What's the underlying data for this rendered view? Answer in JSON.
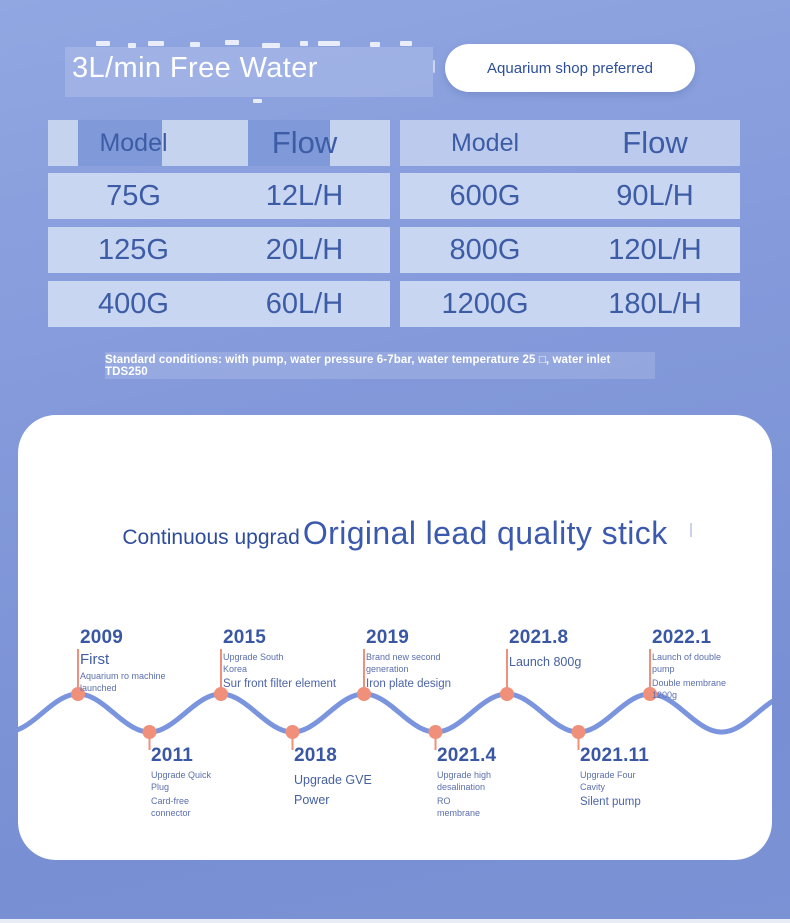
{
  "header": {
    "title": "3L/min Free Water",
    "badge": "Aquarium shop preferred"
  },
  "spec_tables": {
    "left": {
      "col_model": "Model",
      "col_flow": "Flow",
      "rows": [
        {
          "model": "75G",
          "flow": "12L/H"
        },
        {
          "model": "125G",
          "flow": "20L/H"
        },
        {
          "model": "400G",
          "flow": "60L/H"
        }
      ]
    },
    "right": {
      "col_model": "Model",
      "col_flow": "Flow",
      "rows": [
        {
          "model": "600G",
          "flow": "90L/H"
        },
        {
          "model": "800G",
          "flow": "120L/H"
        },
        {
          "model": "1200G",
          "flow": "180L/H"
        }
      ]
    }
  },
  "conditions_note": "Standard conditions: with pump, water pressure 6-7bar, water temperature 25 □, water inlet TDS250",
  "card": {
    "subtitle": "Continuous upgrad",
    "title": "Original lead quality stick",
    "timeline": {
      "entries": [
        {
          "year": "2009",
          "side": "top",
          "desc1": "First",
          "desc2": "Aquarium ro machine\nlaunched"
        },
        {
          "year": "2011",
          "side": "bottom",
          "desc1": "Upgrade Quick\nPlug",
          "desc2": "Card-free\nconnector"
        },
        {
          "year": "2015",
          "side": "top",
          "desc1": "Upgrade South\nKorea",
          "desc2": "Sur front filter element"
        },
        {
          "year": "2018",
          "side": "bottom",
          "desc1": "Upgrade GVE",
          "desc2": "Power"
        },
        {
          "year": "2019",
          "side": "top",
          "desc1": "Brand new second\ngeneration",
          "desc2": "Iron plate design"
        },
        {
          "year": "2021.4",
          "side": "bottom",
          "desc1": "Upgrade high\ndesalination",
          "desc2": "RO\nmembrane"
        },
        {
          "year": "2021.8",
          "side": "top",
          "desc1": "Launch 800g",
          "desc2": ""
        },
        {
          "year": "2021.11",
          "side": "bottom",
          "desc1": "Upgrade Four\nCavity",
          "desc2": "Silent pump"
        },
        {
          "year": "2022.1",
          "side": "top",
          "desc1": "Launch of double\npump",
          "desc2": "Double membrane\n1200g"
        }
      ]
    }
  },
  "colors": {
    "accent_dot": "#F0907A",
    "wave_line": "#7B94DE",
    "table_text": "#3D5CA6",
    "year_text": "#3A57A4",
    "badge_text": "#2D4F9B"
  }
}
